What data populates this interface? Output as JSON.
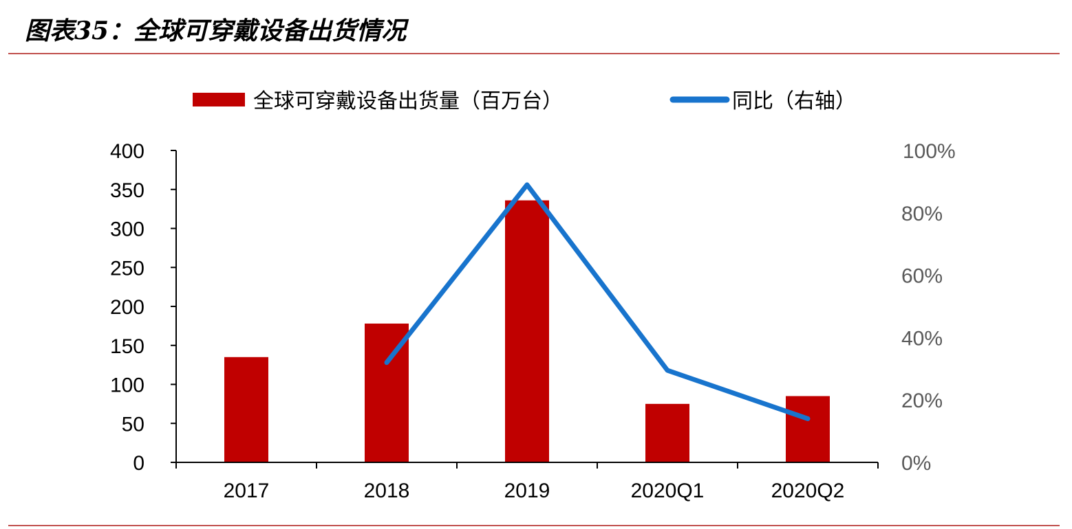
{
  "figure": {
    "title": "图表35：全球可穿戴设备出货情况"
  },
  "colors": {
    "bar": "#c00000",
    "line": "#1874cd",
    "rule": "#c0504d",
    "axis": "#000000",
    "right_tick": "#595959"
  },
  "chart_data": {
    "type": "bar",
    "categories": [
      "2017",
      "2018",
      "2019",
      "2020Q1",
      "2020Q2"
    ],
    "series": [
      {
        "name": "全球可穿戴设备出货量（百万台）",
        "type": "bar",
        "axis": "left",
        "values": [
          135,
          178,
          336,
          75,
          85
        ]
      },
      {
        "name": "同比（右轴）",
        "type": "line",
        "axis": "right",
        "values": [
          null,
          32,
          89,
          29.5,
          14
        ]
      }
    ],
    "left_axis": {
      "ylim": [
        0,
        400
      ],
      "ticks": [
        "0",
        "50",
        "100",
        "150",
        "200",
        "250",
        "300",
        "350",
        "400"
      ]
    },
    "right_axis": {
      "ylim": [
        0,
        100
      ],
      "ticks": [
        "0%",
        "20%",
        "40%",
        "60%",
        "80%",
        "100%"
      ]
    },
    "legend_position": "top",
    "grid": false
  }
}
